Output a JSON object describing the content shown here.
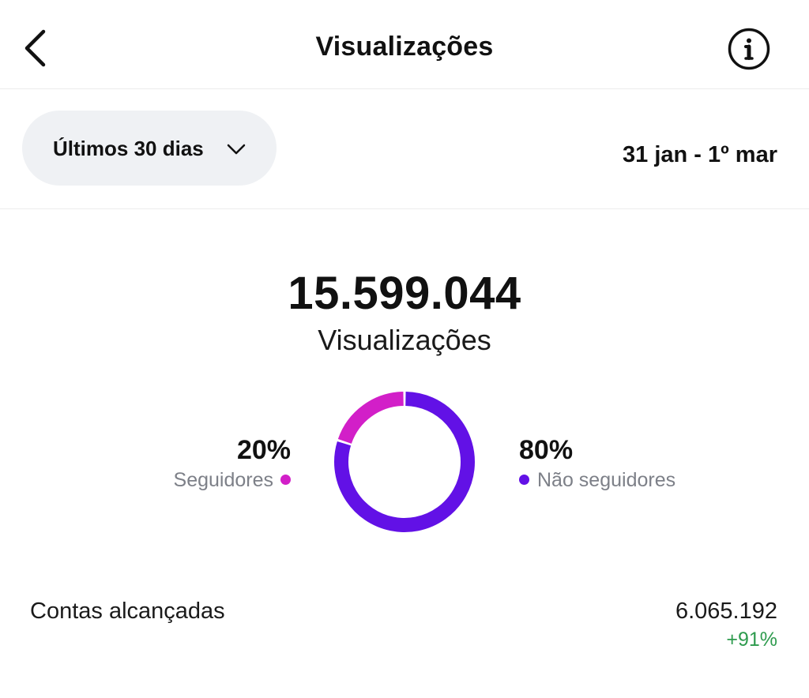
{
  "header": {
    "title": "Visualizações",
    "back_icon": "chevron-left-icon",
    "info_icon": "info-circle-icon"
  },
  "filter": {
    "period_label": "Últimos 30 dias",
    "period_icon": "chevron-down-icon",
    "date_range": "31 jan - 1º mar"
  },
  "summary": {
    "total_value": "15.599.044",
    "total_label": "Visualizações"
  },
  "breakdown": {
    "followers": {
      "percent_label": "20%",
      "percent": 20,
      "label": "Seguidores",
      "color": "#d21fc8"
    },
    "non_followers": {
      "percent_label": "80%",
      "percent": 80,
      "label": "Não seguidores",
      "color": "#6211e6"
    }
  },
  "metrics": {
    "accounts_reached": {
      "label": "Contas alcançadas",
      "value": "6.065.192",
      "change": "+91%",
      "change_color": "#2e9b4e"
    }
  }
}
